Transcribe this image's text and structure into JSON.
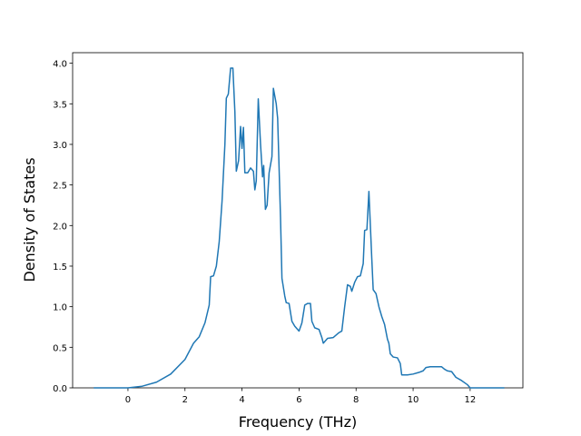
{
  "chart_data": {
    "type": "line",
    "x_label": "Frequency (THz)",
    "y_label": "Density of States",
    "x": [
      -1.2,
      0,
      0.5,
      1,
      1.5,
      2,
      2.3,
      2.5,
      2.7,
      2.85,
      2.9,
      3.0,
      3.1,
      3.2,
      3.3,
      3.4,
      3.45,
      3.52,
      3.6,
      3.68,
      3.75,
      3.8,
      3.88,
      3.95,
      4.0,
      4.05,
      4.1,
      4.2,
      4.3,
      4.4,
      4.45,
      4.5,
      4.57,
      4.65,
      4.72,
      4.76,
      4.82,
      4.88,
      4.95,
      5.05,
      5.1,
      5.2,
      5.25,
      5.35,
      5.4,
      5.5,
      5.55,
      5.65,
      5.75,
      5.85,
      6.0,
      6.1,
      6.2,
      6.3,
      6.4,
      6.45,
      6.55,
      6.7,
      6.8,
      6.85,
      7.0,
      7.2,
      7.4,
      7.5,
      7.6,
      7.7,
      7.8,
      7.85,
      7.95,
      8.05,
      8.15,
      8.25,
      8.3,
      8.38,
      8.45,
      8.55,
      8.6,
      8.7,
      8.8,
      8.9,
      9.0,
      9.1,
      9.15,
      9.2,
      9.3,
      9.45,
      9.55,
      9.6,
      9.8,
      10.0,
      10.2,
      10.35,
      10.45,
      10.6,
      11.0,
      11.1,
      11.2,
      11.35,
      11.5,
      11.7,
      11.9,
      12.0,
      13.2
    ],
    "series": [
      {
        "color": "#1f77b4",
        "values": [
          0,
          0,
          0.02,
          0.07,
          0.17,
          0.35,
          0.55,
          0.63,
          0.8,
          1.02,
          1.37,
          1.38,
          1.5,
          1.8,
          2.3,
          3.0,
          3.57,
          3.62,
          3.94,
          3.94,
          3.4,
          2.67,
          2.8,
          3.22,
          2.95,
          3.21,
          2.65,
          2.65,
          2.71,
          2.67,
          2.44,
          2.55,
          3.56,
          3.0,
          2.6,
          2.74,
          2.2,
          2.25,
          2.65,
          2.85,
          3.69,
          3.5,
          3.32,
          2.1,
          1.35,
          1.13,
          1.05,
          1.04,
          0.82,
          0.76,
          0.7,
          0.8,
          1.02,
          1.04,
          1.04,
          0.82,
          0.74,
          0.72,
          0.62,
          0.55,
          0.61,
          0.62,
          0.68,
          0.7,
          1.0,
          1.27,
          1.25,
          1.19,
          1.3,
          1.37,
          1.38,
          1.53,
          1.94,
          1.95,
          2.42,
          1.6,
          1.21,
          1.16,
          1.0,
          0.88,
          0.78,
          0.6,
          0.55,
          0.42,
          0.38,
          0.37,
          0.3,
          0.16,
          0.16,
          0.17,
          0.19,
          0.21,
          0.25,
          0.26,
          0.26,
          0.23,
          0.21,
          0.2,
          0.13,
          0.09,
          0.04,
          0.0,
          0.0
        ]
      }
    ],
    "xlim": [
      -1.94,
      13.85
    ],
    "xticks": [
      0,
      2,
      4,
      6,
      8,
      10,
      12
    ],
    "ylim": [
      0,
      4.13
    ],
    "yticks": [
      {
        "value": 0,
        "label": "0.0"
      },
      {
        "value": 0.5,
        "label": "0.5"
      },
      {
        "value": 1,
        "label": "1.0"
      },
      {
        "value": 1.5,
        "label": "1.5"
      },
      {
        "value": 2,
        "label": "2.0"
      },
      {
        "value": 2.5,
        "label": "2.5"
      },
      {
        "value": 3,
        "label": "3.0"
      },
      {
        "value": 3.5,
        "label": "3.5"
      },
      {
        "value": 4,
        "label": "4.0"
      }
    ]
  }
}
